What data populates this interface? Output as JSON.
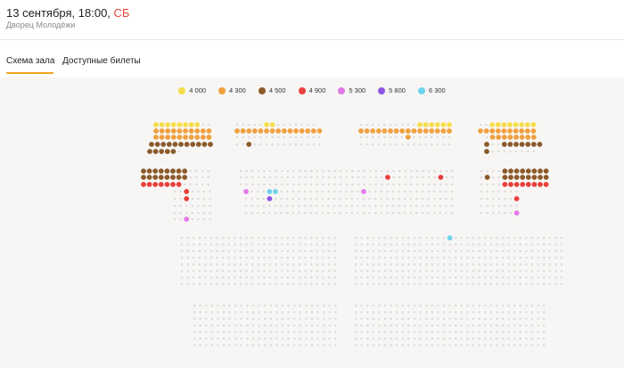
{
  "event": {
    "date_time": "13 сентября, 18:00, ",
    "day": "СБ",
    "venue": "Дворец Молодёжи"
  },
  "tabs": [
    {
      "label": "Схема зала",
      "active": true
    },
    {
      "label": "Доступные билеты",
      "active": false
    }
  ],
  "price_legend": [
    {
      "price": "4 000",
      "color": "#f7dd4b"
    },
    {
      "price": "4 300",
      "color": "#f0a03e"
    },
    {
      "price": "4 500",
      "color": "#8b5a2b"
    },
    {
      "price": "4 900",
      "color": "#e8403c"
    },
    {
      "price": "5 300",
      "color": "#e37ae9"
    },
    {
      "price": "5 800",
      "color": "#8f55e6"
    },
    {
      "price": "6 300",
      "color": "#6fd3ee"
    }
  ],
  "seat_colors": {
    "unavailable": "#dddcda"
  }
}
